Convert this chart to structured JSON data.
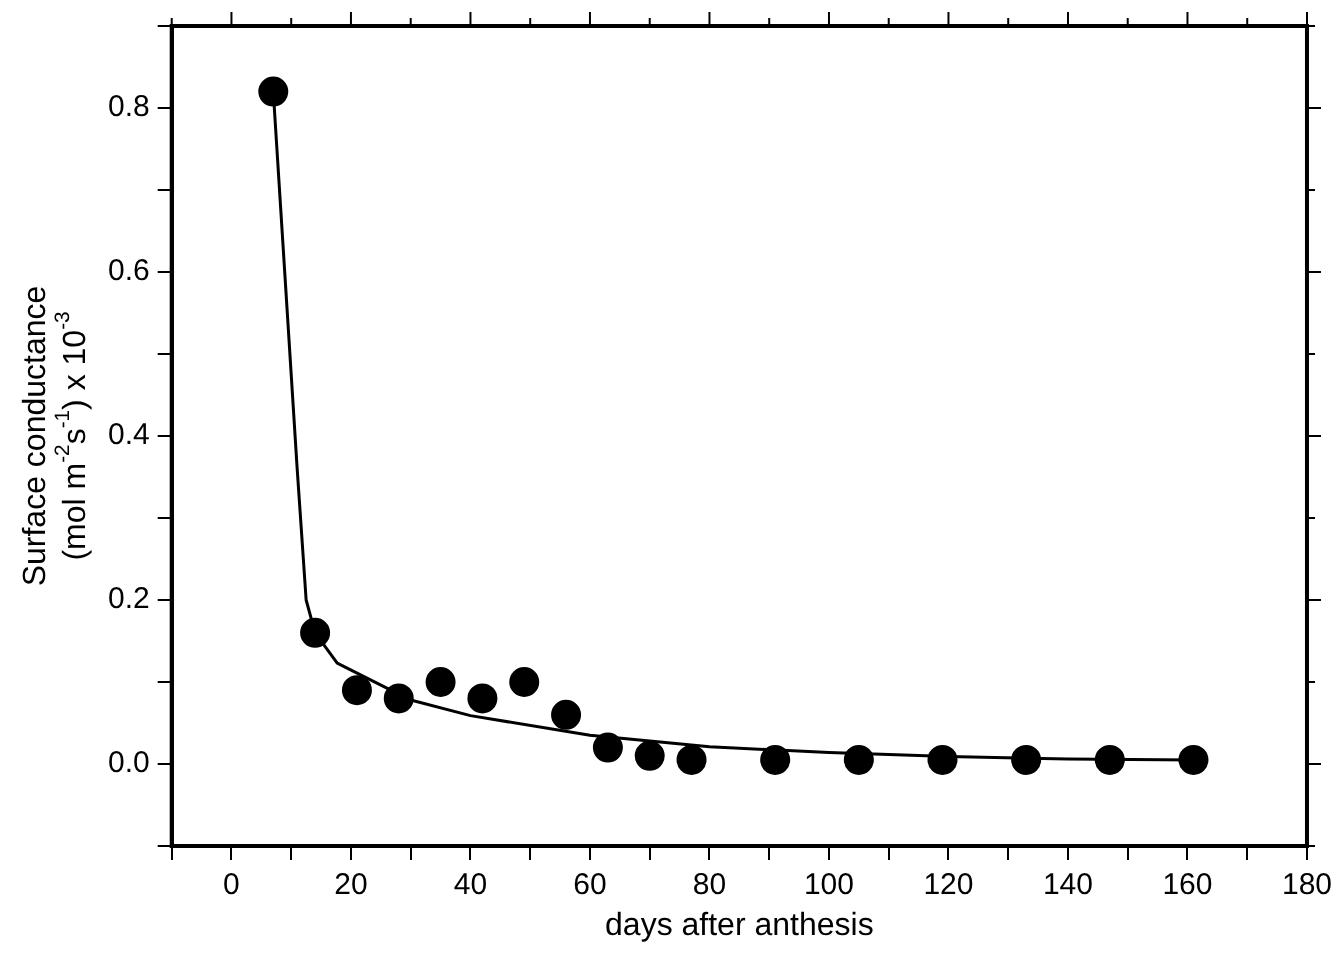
{
  "chart_data": {
    "type": "scatter",
    "xlabel": "days after anthesis",
    "ylabel": "Surface conductance\n(mol m$^{-2}$s$^{-1}$) x 10$^{-3}$",
    "series": [
      {
        "color": "#000000",
        "marker": "circle",
        "x": [
          7,
          14,
          21,
          28,
          35,
          42,
          49,
          56,
          63,
          70,
          77,
          91,
          105,
          119,
          133,
          147,
          161
        ],
        "values": [
          0.82,
          0.16,
          0.09,
          0.08,
          0.1,
          0.08,
          0.1,
          0.06,
          0.02,
          0.01,
          0.005,
          0.005,
          0.005,
          0.005,
          0.005,
          0.005,
          0.005
        ]
      },
      {
        "type": "line",
        "color": "#000000",
        "marker": "none",
        "line_style": "solid",
        "x": [
          7,
          11,
          12.5,
          14,
          17.7,
          30,
          40,
          60,
          80,
          100,
          120,
          140,
          161
        ],
        "values": [
          0.82,
          0.36,
          0.2,
          0.16,
          0.123,
          0.078,
          0.059,
          0.035,
          0.021,
          0.014,
          0.009,
          0.006,
          0.005
        ]
      }
    ],
    "xlim": [
      -10,
      180
    ],
    "xticks": [
      {
        "value": -10,
        "label": null
      },
      0,
      {
        "value": 10,
        "label": null
      },
      20,
      {
        "value": 30,
        "label": null
      },
      40,
      {
        "value": 50,
        "label": null
      },
      60,
      {
        "value": 70,
        "label": null
      },
      80,
      {
        "value": 90,
        "label": null
      },
      100,
      {
        "value": 110,
        "label": null
      },
      120,
      {
        "value": 130,
        "label": null
      },
      140,
      {
        "value": 150,
        "label": null
      },
      160,
      {
        "value": 170,
        "label": null
      },
      180
    ],
    "ylim": [
      -0.1,
      0.9
    ],
    "yticks": [
      {
        "value": -0.1,
        "label": null
      },
      {
        "value": 0,
        "label": "0.0"
      },
      {
        "value": 0.1,
        "label": null
      },
      {
        "value": 0.2,
        "label": "0.2"
      },
      {
        "value": 0.3,
        "label": null
      },
      {
        "value": 0.4,
        "label": "0.4"
      },
      {
        "value": 0.5,
        "label": null
      },
      {
        "value": 0.6,
        "label": "0.6"
      },
      {
        "value": 0.7,
        "label": null
      },
      {
        "value": 0.8,
        "label": "0.8"
      },
      {
        "value": 0.9,
        "label": null
      }
    ],
    "grid": false,
    "legend": false
  }
}
